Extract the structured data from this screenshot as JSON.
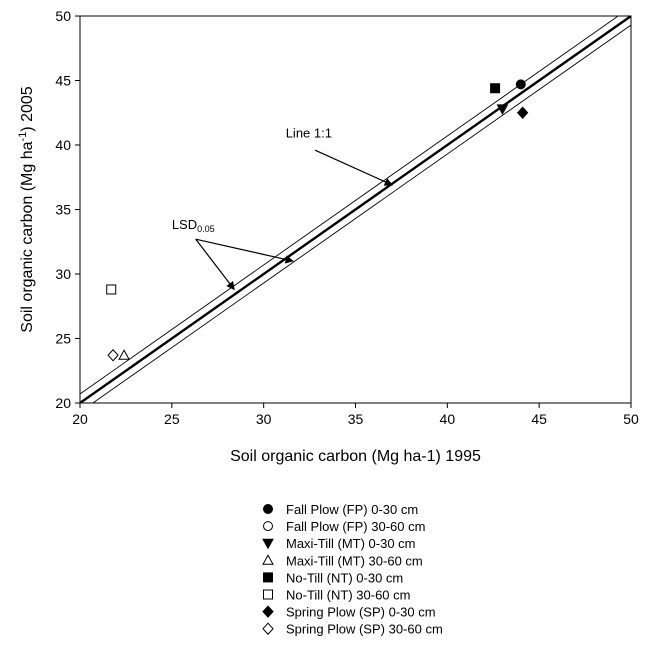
{
  "chart_data": {
    "type": "scatter",
    "xlabel": "Soil organic carbon (Mg ha-1) 1995",
    "ylabel": {
      "pre": "Soil organic carbon (Mg ha",
      "sup": "-1",
      "post": ") 2005"
    },
    "xlim": [
      20,
      50
    ],
    "ylim": [
      20,
      50
    ],
    "xticks": [
      20,
      25,
      30,
      35,
      40,
      45,
      50
    ],
    "yticks": [
      20,
      25,
      30,
      35,
      40,
      45,
      50
    ],
    "grid": false,
    "legend_position": "bottom",
    "series": [
      {
        "name": "Fall Plow (FP) 0-30 cm",
        "marker": "circle",
        "filled": true,
        "points": [
          [
            44.0,
            44.7
          ]
        ]
      },
      {
        "name": "Fall Plow (FP) 30-60 cm",
        "marker": "circle",
        "filled": false,
        "points": []
      },
      {
        "name": "Maxi-Till (MT) 0-30 cm",
        "marker": "triangle-down",
        "filled": true,
        "points": [
          [
            43.0,
            42.8
          ]
        ]
      },
      {
        "name": "Maxi-Till (MT) 30-60 cm",
        "marker": "triangle-up",
        "filled": false,
        "points": [
          [
            22.4,
            23.7
          ]
        ]
      },
      {
        "name": "No-Till (NT) 0-30 cm",
        "marker": "square",
        "filled": true,
        "points": [
          [
            42.6,
            44.4
          ]
        ]
      },
      {
        "name": "No-Till (NT) 30-60 cm",
        "marker": "square",
        "filled": false,
        "points": [
          [
            21.7,
            28.8
          ]
        ]
      },
      {
        "name": "Spring Plow (SP) 0-30 cm",
        "marker": "diamond",
        "filled": true,
        "points": [
          [
            44.1,
            42.5
          ]
        ]
      },
      {
        "name": "Spring Plow (SP) 30-60 cm",
        "marker": "diamond",
        "filled": false,
        "points": [
          [
            21.8,
            23.7
          ]
        ]
      }
    ],
    "reference_lines": [
      {
        "label": "Line 1:1",
        "slope": 1,
        "intercept": 0
      },
      {
        "label": "LSD0.05",
        "slope": 1,
        "offsets": [
          0.7,
          -0.7
        ]
      }
    ],
    "annotations": [
      {
        "text": "Line 1:1",
        "text_at": [
          31.2,
          40.6
        ],
        "arrow_from": [
          32.8,
          39.6
        ],
        "arrow_to": [
          37.0,
          36.9
        ]
      },
      {
        "text_main": "LSD",
        "text_sub": "0.05",
        "text_at": [
          25.0,
          33.5
        ],
        "arrow_from": [
          26.3,
          32.7
        ],
        "arrow_to_list": [
          [
            31.6,
            31.0
          ],
          [
            28.4,
            28.8
          ]
        ]
      }
    ]
  }
}
